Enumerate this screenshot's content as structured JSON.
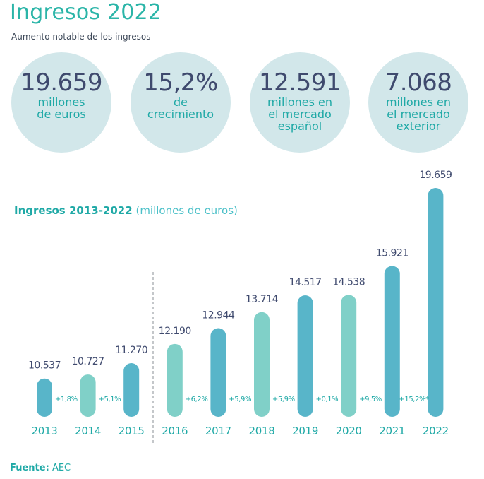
{
  "header": {
    "title": "Ingresos 2022",
    "subtitle": "Aumento notable de los ingresos"
  },
  "kpis": [
    {
      "value": "19.659",
      "label": "millones\nde euros"
    },
    {
      "value": "15,2%",
      "label": "de\ncrecimiento"
    },
    {
      "value": "12.591",
      "label": "millones en\nel mercado\nespañol"
    },
    {
      "value": "7.068",
      "label": "millones en\nel mercado\nexterior"
    }
  ],
  "chart_title": {
    "bold": "Ingresos 2013-2022",
    "unit": "(millones de euros)"
  },
  "source": {
    "label": "Fuente:",
    "value": "AEC"
  },
  "colors": {
    "dark_bar": "#58b5c9",
    "light_bar": "#80d0c8",
    "teal": "#1fa9a6",
    "value_text": "#3f4a6e",
    "circle": "#d2e7ea"
  },
  "chart_data": {
    "type": "bar",
    "categories": [
      "2013",
      "2014",
      "2015",
      "2016",
      "2017",
      "2018",
      "2019",
      "2020",
      "2021",
      "2022"
    ],
    "values": [
      10537,
      10727,
      11270,
      12190,
      12944,
      13714,
      14517,
      14538,
      15921,
      19659
    ],
    "value_labels": [
      "10.537",
      "10.727",
      "11.270",
      "12.190",
      "12.944",
      "13.714",
      "14.517",
      "14.538",
      "15.921",
      "19.659"
    ],
    "growth_labels": [
      "+1,8%",
      "+5,1%",
      "+6,2%",
      "+5,9%",
      "+5,9%",
      "+0,1%",
      "+9,5%",
      "+15,2%*"
    ],
    "bar_shade": [
      "dark",
      "light",
      "dark",
      "light",
      "dark",
      "light",
      "dark",
      "light",
      "dark",
      "dark"
    ],
    "divider_after": "2015"
  }
}
